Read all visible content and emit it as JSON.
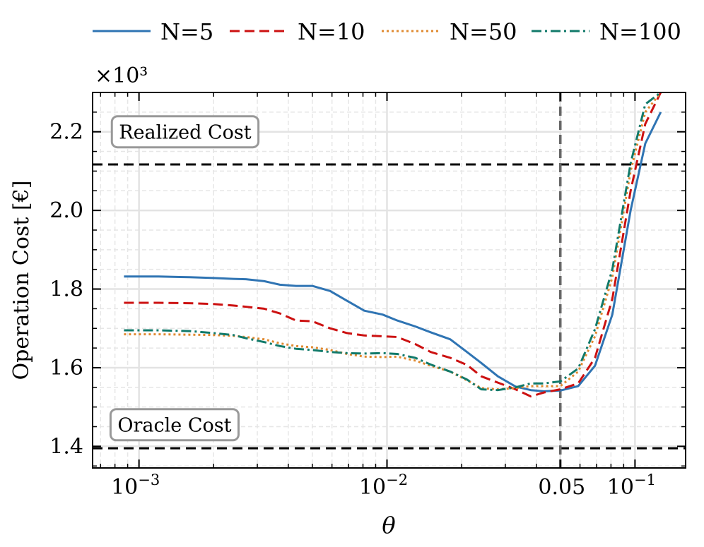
{
  "chart_data": {
    "type": "line",
    "xscale": "log",
    "xlim": [
      0.00065,
      0.16
    ],
    "ylim": [
      1.345,
      2.3
    ],
    "y_multiplier_label": "×10³",
    "xlabel": "θ",
    "ylabel": "Operation Cost [€]",
    "grid": true,
    "legend_position": "top",
    "x_ticks": [
      {
        "value": 0.001,
        "base": "10",
        "exp": "−3"
      },
      {
        "value": 0.01,
        "base": "10",
        "exp": "−2"
      },
      {
        "value": 0.05,
        "text": "0.05"
      },
      {
        "value": 0.1,
        "base": "10",
        "exp": "−1"
      }
    ],
    "y_ticks": [
      {
        "value": 1.4,
        "label": "1.4"
      },
      {
        "value": 1.6,
        "label": "1.6"
      },
      {
        "value": 1.8,
        "label": "1.8"
      },
      {
        "value": 2.0,
        "label": "2.0"
      },
      {
        "value": 2.2,
        "label": "2.2"
      }
    ],
    "reference_lines": {
      "realized_cost": 2.117,
      "oracle_cost": 1.395,
      "theta_vertical": 0.05
    },
    "annotations": [
      {
        "text": "Realized Cost",
        "x": 0.00083,
        "y": 2.2
      },
      {
        "text": "Oracle Cost",
        "x": 0.00082,
        "y": 1.455
      }
    ],
    "x": [
      0.00087,
      0.0012,
      0.0016,
      0.002,
      0.0024,
      0.0027,
      0.0032,
      0.0037,
      0.0043,
      0.005,
      0.0059,
      0.0069,
      0.0081,
      0.0096,
      0.011,
      0.013,
      0.015,
      0.018,
      0.021,
      0.024,
      0.028,
      0.033,
      0.038,
      0.043,
      0.05,
      0.059,
      0.069,
      0.081,
      0.096,
      0.11,
      0.127
    ],
    "series": [
      {
        "name": "N=5",
        "color": "#2f74b3",
        "dash": "solid",
        "values": [
          1.832,
          1.832,
          1.83,
          1.828,
          1.826,
          1.825,
          1.82,
          1.811,
          1.808,
          1.808,
          1.795,
          1.77,
          1.745,
          1.735,
          1.72,
          1.705,
          1.69,
          1.672,
          1.64,
          1.612,
          1.578,
          1.552,
          1.543,
          1.54,
          1.542,
          1.553,
          1.605,
          1.735,
          2.0,
          2.17,
          2.25
        ]
      },
      {
        "name": "N=10",
        "color": "#cc1111",
        "dash": "dashed",
        "values": [
          1.765,
          1.765,
          1.764,
          1.762,
          1.758,
          1.755,
          1.75,
          1.738,
          1.72,
          1.718,
          1.7,
          1.688,
          1.682,
          1.68,
          1.678,
          1.66,
          1.64,
          1.625,
          1.607,
          1.578,
          1.562,
          1.545,
          1.527,
          1.537,
          1.545,
          1.56,
          1.625,
          1.775,
          2.05,
          2.22,
          2.3
        ]
      },
      {
        "name": "N=50",
        "color": "#e08a30",
        "dash": "dotted",
        "values": [
          1.685,
          1.685,
          1.684,
          1.683,
          1.681,
          1.678,
          1.672,
          1.662,
          1.655,
          1.652,
          1.645,
          1.635,
          1.628,
          1.627,
          1.628,
          1.618,
          1.605,
          1.59,
          1.568,
          1.548,
          1.545,
          1.548,
          1.553,
          1.553,
          1.553,
          1.59,
          1.68,
          1.83,
          2.1,
          2.25,
          2.3
        ]
      },
      {
        "name": "N=100",
        "color": "#117a6a",
        "dash": "dashdot",
        "values": [
          1.695,
          1.695,
          1.693,
          1.688,
          1.683,
          1.675,
          1.665,
          1.655,
          1.648,
          1.645,
          1.64,
          1.637,
          1.636,
          1.637,
          1.635,
          1.625,
          1.608,
          1.59,
          1.57,
          1.545,
          1.543,
          1.55,
          1.56,
          1.56,
          1.565,
          1.598,
          1.698,
          1.85,
          2.12,
          2.27,
          2.3
        ]
      }
    ]
  }
}
